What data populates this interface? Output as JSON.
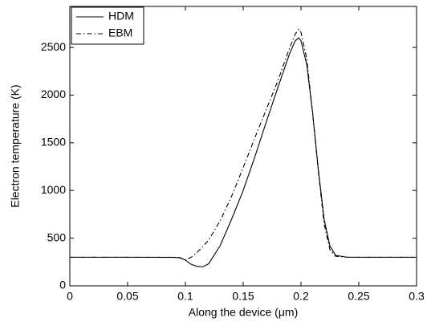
{
  "chart_data": {
    "type": "line",
    "x_label": "Along the device (μm)",
    "y_label": "Electron temperature (K)",
    "x": [
      0,
      0.05,
      0.09,
      0.095,
      0.1,
      0.105,
      0.11,
      0.115,
      0.12,
      0.13,
      0.14,
      0.15,
      0.16,
      0.17,
      0.18,
      0.19,
      0.195,
      0.198,
      0.2,
      0.205,
      0.21,
      0.215,
      0.22,
      0.225,
      0.23,
      0.24,
      0.25,
      0.3
    ],
    "series": [
      {
        "name": "HDM",
        "color": "#000000",
        "style": "solid",
        "values": [
          300,
          300,
          298,
          295,
          270,
          225,
          205,
          200,
          230,
          420,
          700,
          1000,
          1350,
          1720,
          2080,
          2430,
          2570,
          2600,
          2570,
          2320,
          1820,
          1220,
          700,
          420,
          320,
          300,
          300,
          300
        ]
      },
      {
        "name": "EBM",
        "color": "#000000",
        "style": "dashdot",
        "values": [
          300,
          300,
          300,
          298,
          272,
          300,
          350,
          410,
          480,
          680,
          940,
          1240,
          1550,
          1850,
          2150,
          2490,
          2640,
          2690,
          2660,
          2380,
          1820,
          1200,
          650,
          380,
          310,
          300,
          300,
          300
        ]
      }
    ],
    "xlim": [
      0,
      0.3
    ],
    "xticks": [
      0,
      0.05,
      0.1,
      0.15,
      0.2,
      0.25,
      0.3
    ],
    "ylim": [
      0,
      2930
    ],
    "yticks": [
      0,
      500,
      1000,
      1500,
      2000,
      2500
    ],
    "legend": "top-left"
  }
}
